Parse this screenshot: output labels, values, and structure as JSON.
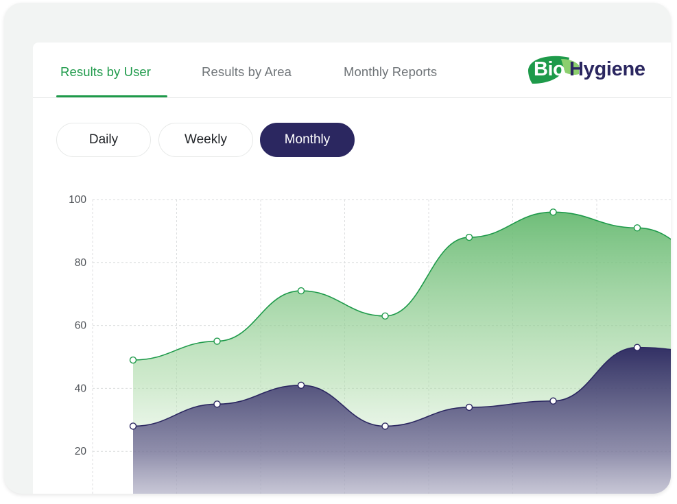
{
  "tabs": [
    {
      "label": "Results by User",
      "active": true
    },
    {
      "label": "Results by Area",
      "active": false
    },
    {
      "label": "Monthly Reports",
      "active": false
    }
  ],
  "logo": {
    "part1": "Bio",
    "part2": "Hygiene",
    "leaf_color": "#1e9a4a",
    "text_color": "#2b2760"
  },
  "period": {
    "options": [
      "Daily",
      "Weekly",
      "Monthly"
    ],
    "selected": "Monthly"
  },
  "colors": {
    "accent_green": "#1e9a4a",
    "navy": "#2b2760"
  },
  "chart_data": {
    "type": "area",
    "yticks": [
      100,
      80,
      60,
      40,
      20
    ],
    "ylim": [
      0,
      100
    ],
    "grid": true,
    "series": [
      {
        "values": [
          49,
          55,
          71,
          63,
          88,
          96,
          91,
          80
        ],
        "color": "#1e9a4a"
      },
      {
        "values": [
          28,
          35,
          41,
          28,
          34,
          36,
          53,
          51
        ],
        "color": "#2b2760"
      }
    ]
  }
}
